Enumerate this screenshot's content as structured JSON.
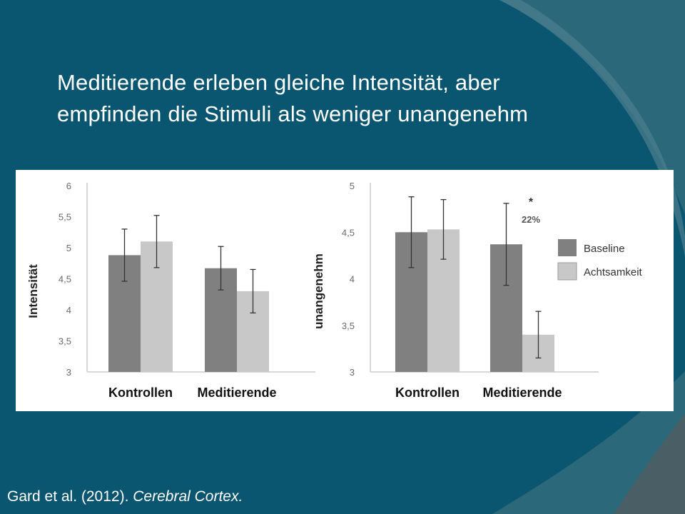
{
  "slide": {
    "title_line1": "Meditierende erleben gleiche Intensität, aber",
    "title_line2": "empfinden die Stimuli als weniger unangenehm",
    "citation_authors": "Gard et al. (2012). ",
    "citation_journal": "Cerebral Cortex."
  },
  "colors": {
    "baseline": "#808080",
    "achtsamkeit": "#c8c8c8",
    "background": "#0a5670",
    "panel": "#ffffff"
  },
  "chart_data": [
    {
      "type": "bar",
      "ylabel": "Intensität",
      "categories": [
        "Kontrollen",
        "Meditierende"
      ],
      "ylim": [
        3,
        6
      ],
      "yticks": [
        "3",
        "3,5",
        "4",
        "4,5",
        "5",
        "5,5",
        "6"
      ],
      "grid": false,
      "series": [
        {
          "name": "Baseline",
          "values": [
            4.88,
            4.67
          ],
          "error": [
            0.42,
            0.35
          ]
        },
        {
          "name": "Achtsamkeit",
          "values": [
            5.1,
            4.3
          ],
          "error": [
            0.42,
            0.35
          ]
        }
      ]
    },
    {
      "type": "bar",
      "ylabel": "unangenehm",
      "categories": [
        "Kontrollen",
        "Meditierende"
      ],
      "ylim": [
        3,
        5
      ],
      "yticks": [
        "3",
        "3,5",
        "4",
        "4,5",
        "5"
      ],
      "grid": false,
      "annotation": {
        "star": "*",
        "text": "22%"
      },
      "series": [
        {
          "name": "Baseline",
          "values": [
            4.5,
            4.37
          ],
          "error": [
            0.38,
            0.44
          ]
        },
        {
          "name": "Achtsamkeit",
          "values": [
            4.53,
            3.4
          ],
          "error": [
            0.32,
            0.25
          ]
        }
      ],
      "legend": {
        "position": "right",
        "entries": [
          "Baseline",
          "Achtsamkeit"
        ]
      }
    }
  ]
}
